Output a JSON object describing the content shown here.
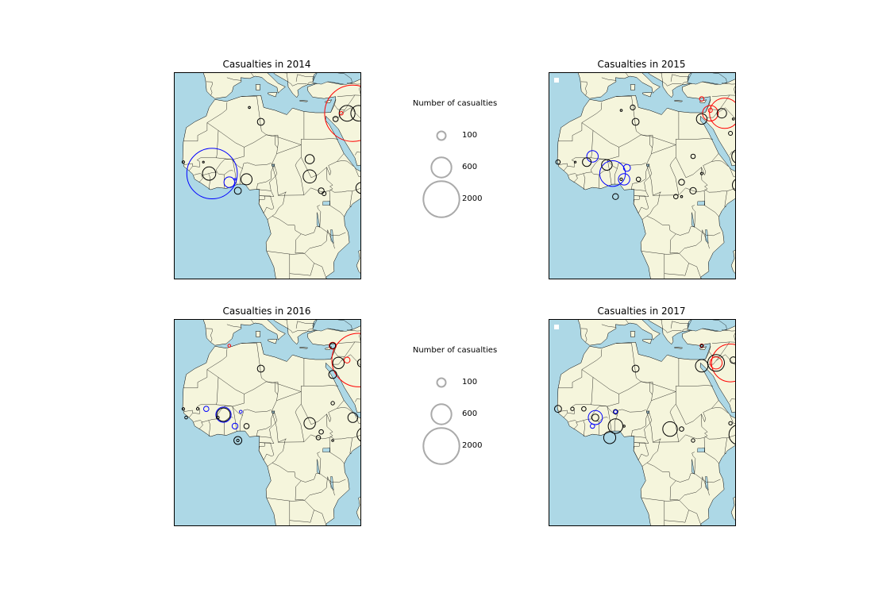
{
  "colors": {
    "ocean": "#add8e6",
    "land": "#f5f5dc",
    "border": "#000000",
    "legend_circle": "#aaaaaa",
    "series_colors": [
      "#000000",
      "#ff0000",
      "#0000ff",
      "#008000"
    ]
  },
  "legend": {
    "title": "Number of casualties",
    "entries": [
      {
        "label": "100",
        "value": 100
      },
      {
        "label": "600",
        "value": 600
      },
      {
        "label": "2000",
        "value": 2000
      }
    ]
  },
  "panels": [
    {
      "title": "Casualties in 2014",
      "markers": [
        {
          "lon": 6,
          "lat": 33,
          "casualties": 2,
          "color": "#000000"
        },
        {
          "lon": 10,
          "lat": 28,
          "casualties": 60,
          "color": "#000000"
        },
        {
          "lon": 36,
          "lat": 29,
          "casualties": 30,
          "color": "#000000"
        },
        {
          "lon": 40,
          "lat": 31,
          "casualties": 360,
          "color": "#000000"
        },
        {
          "lon": 44,
          "lat": 31,
          "casualties": 350,
          "color": "#000000"
        },
        {
          "lon": 38,
          "lat": 31,
          "casualties": 10,
          "color": "#ff0000"
        },
        {
          "lon": 42,
          "lat": 31,
          "casualties": 5000,
          "color": "#ff0000"
        },
        {
          "lon": 47,
          "lat": 15,
          "casualties": 60,
          "color": "#000000"
        },
        {
          "lon": 47,
          "lat": 15,
          "casualties": 40,
          "color": "#008000"
        },
        {
          "lon": -17,
          "lat": 14,
          "casualties": 4,
          "color": "#000000"
        },
        {
          "lon": -10,
          "lat": 14,
          "casualties": 1,
          "color": "#000000"
        },
        {
          "lon": -8,
          "lat": 10,
          "casualties": 250,
          "color": "#000000"
        },
        {
          "lon": -7,
          "lat": 10,
          "casualties": 4000,
          "color": "#0000ff"
        },
        {
          "lon": -1,
          "lat": 7,
          "casualties": 150,
          "color": "#0000ff"
        },
        {
          "lon": 1,
          "lat": 8,
          "casualties": 1,
          "color": "#0000ff"
        },
        {
          "lon": 5,
          "lat": 8,
          "casualties": 170,
          "color": "#000000"
        },
        {
          "lon": 2,
          "lat": 4,
          "casualties": 60,
          "color": "#000000"
        },
        {
          "lon": 27,
          "lat": 15,
          "casualties": 110,
          "color": "#000000"
        },
        {
          "lon": 27,
          "lat": 9,
          "casualties": 240,
          "color": "#000000"
        },
        {
          "lon": 31,
          "lat": 4,
          "casualties": 40,
          "color": "#000000"
        },
        {
          "lon": 32,
          "lat": 3,
          "casualties": 15,
          "color": "#000000"
        },
        {
          "lon": 45,
          "lat": 5,
          "casualties": 170,
          "color": "#000000"
        }
      ]
    },
    {
      "title": "Casualties in 2015",
      "markers": [
        {
          "lon": 5,
          "lat": 32,
          "casualties": 2,
          "color": "#000000"
        },
        {
          "lon": 10,
          "lat": 28,
          "casualties": 60,
          "color": "#000000"
        },
        {
          "lon": 9,
          "lat": 33,
          "casualties": 25,
          "color": "#000000"
        },
        {
          "lon": 33,
          "lat": 36,
          "casualties": 20,
          "color": "#ff0000"
        },
        {
          "lon": 33,
          "lat": 29,
          "casualties": 150,
          "color": "#000000"
        },
        {
          "lon": 36,
          "lat": 31,
          "casualties": 350,
          "color": "#ff0000"
        },
        {
          "lon": 36,
          "lat": 32,
          "casualties": 15,
          "color": "#ff0000"
        },
        {
          "lon": 40,
          "lat": 31,
          "casualties": 120,
          "color": "#000000"
        },
        {
          "lon": 41,
          "lat": 31,
          "casualties": 1400,
          "color": "#ff0000"
        },
        {
          "lon": 46,
          "lat": 33,
          "casualties": 1,
          "color": "#000000"
        },
        {
          "lon": 44,
          "lat": 29,
          "casualties": 2,
          "color": "#000000"
        },
        {
          "lon": 43,
          "lat": 24,
          "casualties": 15,
          "color": "#000000"
        },
        {
          "lon": 46,
          "lat": 16,
          "casualties": 300,
          "color": "#000000"
        },
        {
          "lon": 46,
          "lat": 16,
          "casualties": 35,
          "color": "#008000"
        },
        {
          "lon": 30,
          "lat": 16,
          "casualties": 20,
          "color": "#000000"
        },
        {
          "lon": 33,
          "lat": 10,
          "casualties": 4,
          "color": "#000000"
        },
        {
          "lon": -17,
          "lat": 14,
          "casualties": 20,
          "color": "#000000"
        },
        {
          "lon": -11,
          "lat": 14,
          "casualties": 1,
          "color": "#000000"
        },
        {
          "lon": -7,
          "lat": 14,
          "casualties": 100,
          "color": "#000000"
        },
        {
          "lon": -5,
          "lat": 16,
          "casualties": 180,
          "color": "#0000ff"
        },
        {
          "lon": 0,
          "lat": 13,
          "casualties": 150,
          "color": "#000000"
        },
        {
          "lon": 2,
          "lat": 10,
          "casualties": 1000,
          "color": "#0000ff"
        },
        {
          "lon": 7,
          "lat": 12,
          "casualties": 60,
          "color": "#0000ff"
        },
        {
          "lon": 6,
          "lat": 8,
          "casualties": 180,
          "color": "#0000ff"
        },
        {
          "lon": 5,
          "lat": 8,
          "casualties": 4,
          "color": "#000000"
        },
        {
          "lon": 11,
          "lat": 8,
          "casualties": 20,
          "color": "#000000"
        },
        {
          "lon": 3,
          "lat": 2,
          "casualties": 40,
          "color": "#000000"
        },
        {
          "lon": 26,
          "lat": 7,
          "casualties": 40,
          "color": "#000000"
        },
        {
          "lon": 24,
          "lat": 2,
          "casualties": 20,
          "color": "#000000"
        },
        {
          "lon": 30,
          "lat": 4,
          "casualties": 50,
          "color": "#000000"
        },
        {
          "lon": 26,
          "lat": 2,
          "casualties": 2,
          "color": "#000000"
        },
        {
          "lon": 46,
          "lat": 6,
          "casualties": 250,
          "color": "#000000"
        },
        {
          "lon": 27,
          "lat": -29,
          "casualties": 1,
          "color": "#000000"
        }
      ]
    },
    {
      "title": "Casualties in 2016",
      "markers": [
        {
          "lon": -1,
          "lat": 36,
          "casualties": 6,
          "color": "#ff0000"
        },
        {
          "lon": 10,
          "lat": 28,
          "casualties": 60,
          "color": "#000000"
        },
        {
          "lon": 35,
          "lat": 36,
          "casualties": 60,
          "color": "#ff0000"
        },
        {
          "lon": 35,
          "lat": 36,
          "casualties": 40,
          "color": "#000000"
        },
        {
          "lon": 37,
          "lat": 30,
          "casualties": 180,
          "color": "#000000"
        },
        {
          "lon": 40,
          "lat": 31,
          "casualties": 40,
          "color": "#ff0000"
        },
        {
          "lon": 44,
          "lat": 31,
          "casualties": 4500,
          "color": "#ff0000"
        },
        {
          "lon": 45,
          "lat": 30,
          "casualties": 80,
          "color": "#000000"
        },
        {
          "lon": 35,
          "lat": 26,
          "casualties": 80,
          "color": "#000000"
        },
        {
          "lon": 48,
          "lat": 22,
          "casualties": 10,
          "color": "#000000"
        },
        {
          "lon": 47,
          "lat": 15,
          "casualties": 200,
          "color": "#000000"
        },
        {
          "lon": 47,
          "lat": 15,
          "casualties": 8,
          "color": "#008000"
        },
        {
          "lon": 35,
          "lat": 16,
          "casualties": 10,
          "color": "#000000"
        },
        {
          "lon": -17,
          "lat": 14,
          "casualties": 4,
          "color": "#000000"
        },
        {
          "lon": -12,
          "lat": 14,
          "casualties": 4,
          "color": "#000000"
        },
        {
          "lon": -9,
          "lat": 14,
          "casualties": 30,
          "color": "#0000ff"
        },
        {
          "lon": -5,
          "lat": 11,
          "casualties": 6,
          "color": "#000000"
        },
        {
          "lon": -16,
          "lat": 11,
          "casualties": 6,
          "color": "#000000"
        },
        {
          "lon": -3,
          "lat": 12,
          "casualties": 330,
          "color": "#0000ff"
        },
        {
          "lon": -3,
          "lat": 12,
          "casualties": 250,
          "color": "#000000"
        },
        {
          "lon": 3,
          "lat": 13,
          "casualties": 6,
          "color": "#0000ff"
        },
        {
          "lon": 1,
          "lat": 8,
          "casualties": 40,
          "color": "#0000ff"
        },
        {
          "lon": 5,
          "lat": 8,
          "casualties": 30,
          "color": "#000000"
        },
        {
          "lon": 2,
          "lat": 3,
          "casualties": 80,
          "color": "#000000"
        },
        {
          "lon": 2,
          "lat": 3,
          "casualties": 4,
          "color": "#000000"
        },
        {
          "lon": 27,
          "lat": 9,
          "casualties": 180,
          "color": "#000000"
        },
        {
          "lon": 31,
          "lat": 6,
          "casualties": 20,
          "color": "#000000"
        },
        {
          "lon": 30,
          "lat": 4,
          "casualties": 20,
          "color": "#000000"
        },
        {
          "lon": 35,
          "lat": 3,
          "casualties": 2,
          "color": "#000000"
        },
        {
          "lon": 42,
          "lat": 11,
          "casualties": 130,
          "color": "#000000"
        },
        {
          "lon": 46,
          "lat": 5,
          "casualties": 300,
          "color": "#000000"
        },
        {
          "lon": 27,
          "lat": -29,
          "casualties": 1,
          "color": "#000000"
        }
      ]
    },
    {
      "title": "Casualties in 2017",
      "markers": [
        {
          "lon": 10,
          "lat": 28,
          "casualties": 60,
          "color": "#000000"
        },
        {
          "lon": 33,
          "lat": 36,
          "casualties": 10,
          "color": "#ff0000"
        },
        {
          "lon": 33,
          "lat": 36,
          "casualties": 5,
          "color": "#000000"
        },
        {
          "lon": 33,
          "lat": 29,
          "casualties": 220,
          "color": "#000000"
        },
        {
          "lon": 38,
          "lat": 30,
          "casualties": 400,
          "color": "#000000"
        },
        {
          "lon": 38,
          "lat": 30,
          "casualties": 200,
          "color": "#ff0000"
        },
        {
          "lon": 44,
          "lat": 31,
          "casualties": 50,
          "color": "#000000"
        },
        {
          "lon": 43,
          "lat": 30,
          "casualties": 2200,
          "color": "#ff0000"
        },
        {
          "lon": 47,
          "lat": 30,
          "casualties": 1,
          "color": "#000000"
        },
        {
          "lon": 47,
          "lat": 16,
          "casualties": 80,
          "color": "#000000"
        },
        {
          "lon": 47,
          "lat": 16,
          "casualties": 20,
          "color": "#008000"
        },
        {
          "lon": 43,
          "lat": 9,
          "casualties": 10,
          "color": "#000000"
        },
        {
          "lon": -17,
          "lat": 14,
          "casualties": 60,
          "color": "#000000"
        },
        {
          "lon": -12,
          "lat": 14,
          "casualties": 10,
          "color": "#000000"
        },
        {
          "lon": -8,
          "lat": 14,
          "casualties": 20,
          "color": "#000000"
        },
        {
          "lon": -4,
          "lat": 11,
          "casualties": 280,
          "color": "#0000ff"
        },
        {
          "lon": -4,
          "lat": 11,
          "casualties": 60,
          "color": "#000000"
        },
        {
          "lon": 3,
          "lat": 13,
          "casualties": 20,
          "color": "#000000"
        },
        {
          "lon": 3,
          "lat": 13,
          "casualties": 10,
          "color": "#0000ff"
        },
        {
          "lon": -5,
          "lat": 8,
          "casualties": 20,
          "color": "#0000ff"
        },
        {
          "lon": 1,
          "lat": 4,
          "casualties": 200,
          "color": "#000000"
        },
        {
          "lon": 3,
          "lat": 8,
          "casualties": 300,
          "color": "#000000"
        },
        {
          "lon": 6,
          "lat": 8,
          "casualties": 2,
          "color": "#000000"
        },
        {
          "lon": 22,
          "lat": 7,
          "casualties": 300,
          "color": "#000000"
        },
        {
          "lon": 30,
          "lat": 3,
          "casualties": 10,
          "color": "#000000"
        },
        {
          "lon": 26,
          "lat": 7,
          "casualties": 20,
          "color": "#000000"
        },
        {
          "lon": 46,
          "lat": 5,
          "casualties": 600,
          "color": "#000000"
        },
        {
          "lon": 27,
          "lat": -29,
          "casualties": 1,
          "color": "#000000"
        }
      ]
    }
  ]
}
